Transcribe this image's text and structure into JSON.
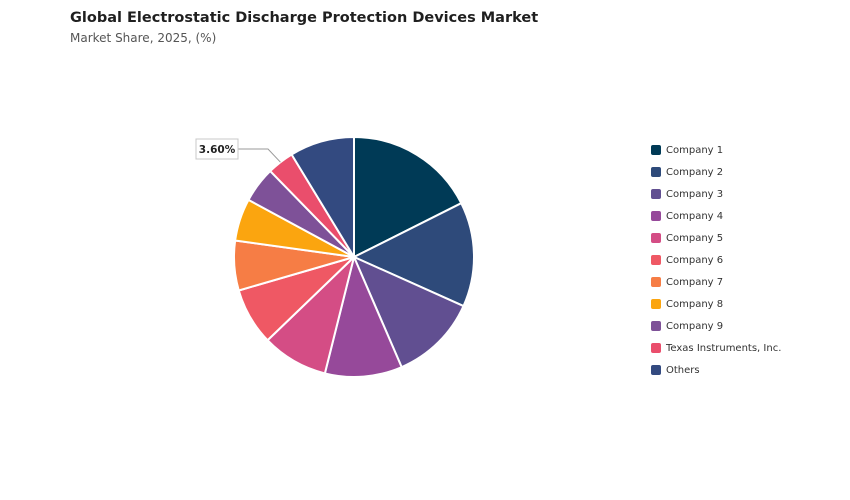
{
  "header": {
    "title": "Global Electrostatic Discharge Protection Devices Market",
    "subtitle": "Market Share, 2025, (%)"
  },
  "chart_data": {
    "type": "pie",
    "title": "Global Electrostatic Discharge Protection Devices Market",
    "subtitle": "Market Share, 2025, (%)",
    "categories": [
      "Company 1",
      "Company 2",
      "Company 3",
      "Company 4",
      "Company 5",
      "Company 6",
      "Company 7",
      "Company 8",
      "Company 9",
      "Texas Instruments, Inc.",
      "Others"
    ],
    "values": [
      17.6,
      14.1,
      11.8,
      10.4,
      8.9,
      7.7,
      6.7,
      5.7,
      4.8,
      3.6,
      8.7
    ],
    "colors": [
      "#003a56",
      "#2e4a7a",
      "#614f91",
      "#96499a",
      "#d44d85",
      "#ef5864",
      "#f67d45",
      "#fba50f",
      "#7e5198",
      "#ea4e6c",
      "#334a80"
    ],
    "annotations": [
      {
        "category": "Texas Instruments, Inc.",
        "label": "3.60%"
      }
    ],
    "legend_position": "right"
  }
}
